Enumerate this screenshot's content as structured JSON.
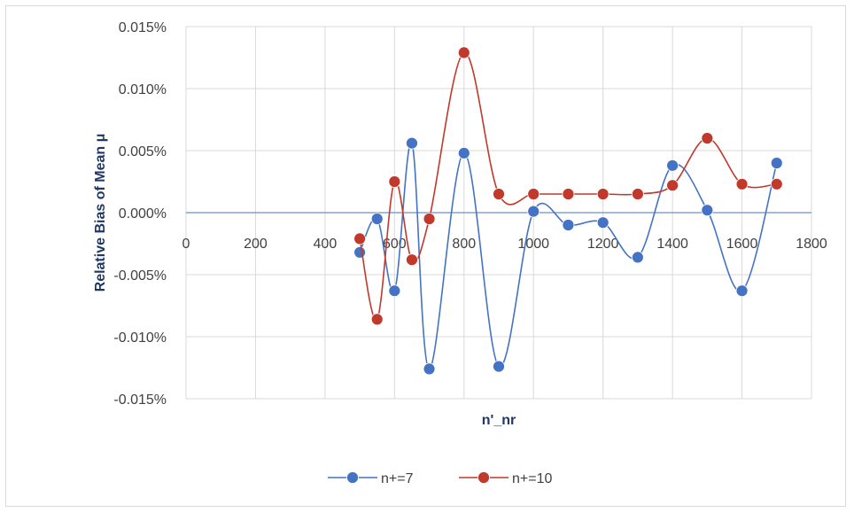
{
  "chart_data": {
    "type": "line",
    "xlabel": "n'_nr",
    "ylabel": "Relative Bias of Mean μ",
    "xlim": [
      0,
      1800
    ],
    "ylim": [
      -0.015,
      0.015
    ],
    "x_ticks": [
      "0",
      "200",
      "400",
      "600",
      "800",
      "1000",
      "1200",
      "1400",
      "1600",
      "1800"
    ],
    "y_ticks": [
      "0.015%",
      "0.010%",
      "0.005%",
      "0.000%",
      "-0.005%",
      "-0.010%",
      "-0.015%"
    ],
    "grid": true,
    "smooth": true,
    "legend_position": "bottom",
    "series": [
      {
        "name": "n+=7",
        "color": "#4472c4",
        "points": [
          {
            "x": 500,
            "y": -0.0032
          },
          {
            "x": 550,
            "y": -0.0005
          },
          {
            "x": 600,
            "y": -0.0063
          },
          {
            "x": 650,
            "y": 0.0056
          },
          {
            "x": 700,
            "y": -0.0126
          },
          {
            "x": 800,
            "y": 0.0048
          },
          {
            "x": 900,
            "y": -0.0124
          },
          {
            "x": 1000,
            "y": 0.0001
          },
          {
            "x": 1100,
            "y": -0.001
          },
          {
            "x": 1200,
            "y": -0.0008
          },
          {
            "x": 1300,
            "y": -0.0036
          },
          {
            "x": 1400,
            "y": 0.0038
          },
          {
            "x": 1500,
            "y": 0.0002
          },
          {
            "x": 1600,
            "y": -0.0063
          },
          {
            "x": 1700,
            "y": 0.004
          }
        ]
      },
      {
        "name": "n+=10",
        "color": "#c0392b",
        "points": [
          {
            "x": 500,
            "y": -0.0021
          },
          {
            "x": 550,
            "y": -0.0086
          },
          {
            "x": 600,
            "y": 0.0025
          },
          {
            "x": 650,
            "y": -0.0038
          },
          {
            "x": 700,
            "y": -0.0005
          },
          {
            "x": 800,
            "y": 0.0129
          },
          {
            "x": 900,
            "y": 0.0015
          },
          {
            "x": 1000,
            "y": 0.0015
          },
          {
            "x": 1100,
            "y": 0.0015
          },
          {
            "x": 1200,
            "y": 0.0015
          },
          {
            "x": 1300,
            "y": 0.0015
          },
          {
            "x": 1400,
            "y": 0.0022
          },
          {
            "x": 1500,
            "y": 0.006
          },
          {
            "x": 1600,
            "y": 0.0023
          },
          {
            "x": 1700,
            "y": 0.0023
          }
        ]
      }
    ]
  }
}
